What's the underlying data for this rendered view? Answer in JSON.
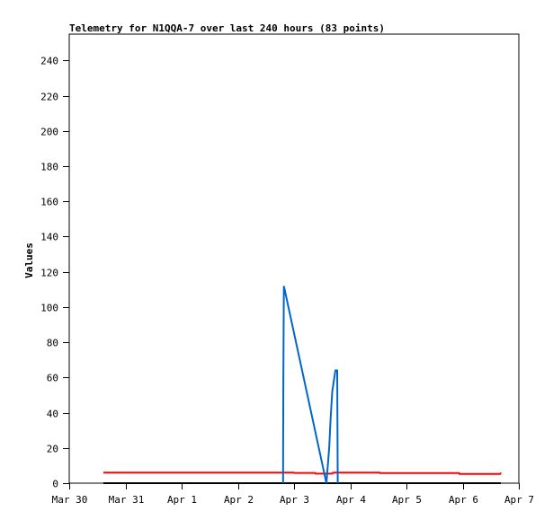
{
  "chart_data": {
    "type": "line",
    "title": "Telemetry for N1QQA-7 over last 240 hours (83 points)",
    "xlabel": "",
    "ylabel": "Values",
    "xlim": [
      "Mar 30 00:00",
      "Apr 7 00:00"
    ],
    "ylim": [
      0,
      255
    ],
    "x_tick_labels": [
      "Mar 30",
      "Mar 31",
      "Apr 1",
      "Apr 2",
      "Apr 3",
      "Apr 4",
      "Apr 5",
      "Apr 6",
      "Apr 7"
    ],
    "y_ticks": [
      0,
      20,
      40,
      60,
      80,
      100,
      120,
      140,
      160,
      180,
      200,
      220,
      240
    ],
    "grid": false,
    "legend": "none",
    "series": [
      {
        "color": "#000000",
        "points": [
          [
            "Mar 30 14:35",
            0
          ],
          [
            "Apr 6 16:20",
            0
          ]
        ]
      },
      {
        "color": "#ff0000",
        "points": [
          [
            "Mar 30 14:35",
            6
          ],
          [
            "Apr 2 23:50",
            6
          ],
          [
            "Apr 3 00:10",
            5.8
          ],
          [
            "Apr 3 09:00",
            5.8
          ],
          [
            "Apr 3 09:10",
            5.4
          ],
          [
            "Apr 3 16:20",
            5.4
          ],
          [
            "Apr 3 16:40",
            5.9
          ],
          [
            "Apr 3 17:40",
            6
          ],
          [
            "Apr 4 12:30",
            6
          ],
          [
            "Apr 4 12:40",
            5.7
          ],
          [
            "Apr 5 22:30",
            5.7
          ],
          [
            "Apr 5 22:40",
            5.2
          ],
          [
            "Apr 6 16:00",
            5.2
          ],
          [
            "Apr 6 16:20",
            6
          ]
        ]
      },
      {
        "color": "#0066cc",
        "points": [
          [
            "Apr 2 19:20",
            0
          ],
          [
            "Apr 2 19:25",
            57
          ],
          [
            "Apr 2 19:40",
            112
          ],
          [
            "Apr 3 13:50",
            0
          ],
          [
            "Apr 3 15:00",
            20
          ],
          [
            "Apr 3 15:35",
            36
          ],
          [
            "Apr 3 16:20",
            52
          ],
          [
            "Apr 3 17:40",
            64
          ],
          [
            "Apr 3 18:25",
            64
          ],
          [
            "Apr 3 18:40",
            0
          ]
        ]
      }
    ]
  }
}
